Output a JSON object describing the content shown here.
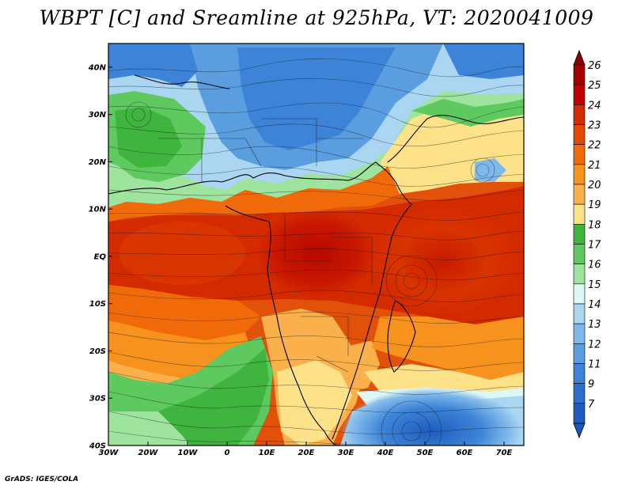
{
  "title": "WBPT [C] and Sreamline at 925hPa, VT: 2020041009",
  "credit": "GrADS: IGES/COLA",
  "map": {
    "lon_range": [
      -30,
      75
    ],
    "lat_range": [
      -40,
      45
    ],
    "lon_ticks": [
      {
        "value": -30,
        "label": "30W"
      },
      {
        "value": -20,
        "label": "20W"
      },
      {
        "value": -10,
        "label": "10W"
      },
      {
        "value": 0,
        "label": "0"
      },
      {
        "value": 10,
        "label": "10E"
      },
      {
        "value": 20,
        "label": "20E"
      },
      {
        "value": 30,
        "label": "30E"
      },
      {
        "value": 40,
        "label": "40E"
      },
      {
        "value": 50,
        "label": "50E"
      },
      {
        "value": 60,
        "label": "60E"
      },
      {
        "value": 70,
        "label": "70E"
      }
    ],
    "lat_ticks": [
      {
        "value": 40,
        "label": "40N"
      },
      {
        "value": 30,
        "label": "30N"
      },
      {
        "value": 20,
        "label": "20N"
      },
      {
        "value": 10,
        "label": "10N"
      },
      {
        "value": 0,
        "label": "EQ"
      },
      {
        "value": -10,
        "label": "10S"
      },
      {
        "value": -20,
        "label": "20S"
      },
      {
        "value": -30,
        "label": "30S"
      },
      {
        "value": -40,
        "label": "40S"
      }
    ]
  },
  "colorbar": {
    "levels": [
      {
        "label": "26",
        "color": "#a50000"
      },
      {
        "label": "25",
        "color": "#c00000"
      },
      {
        "label": "24",
        "color": "#d42a00"
      },
      {
        "label": "23",
        "color": "#e24a00"
      },
      {
        "label": "22",
        "color": "#f06a0a"
      },
      {
        "label": "21",
        "color": "#f7921e"
      },
      {
        "label": "20",
        "color": "#fab14c"
      },
      {
        "label": "19",
        "color": "#fde28a"
      },
      {
        "label": "18",
        "color": "#3fb43f"
      },
      {
        "label": "17",
        "color": "#5ec95e"
      },
      {
        "label": "16",
        "color": "#9ee39e"
      },
      {
        "label": "15",
        "color": "#ddf7f7"
      },
      {
        "label": "14",
        "color": "#aad6f2"
      },
      {
        "label": "13",
        "color": "#7fb8ea"
      },
      {
        "label": "12",
        "color": "#5a9ee0"
      },
      {
        "label": "11",
        "color": "#3d84d8"
      },
      {
        "label": "9",
        "color": "#2c6fcc"
      },
      {
        "label": "7",
        "color": "#1f5cbf"
      }
    ],
    "top_arrow_color": "#8c0000",
    "bottom_arrow_color": "#1a55c6"
  }
}
